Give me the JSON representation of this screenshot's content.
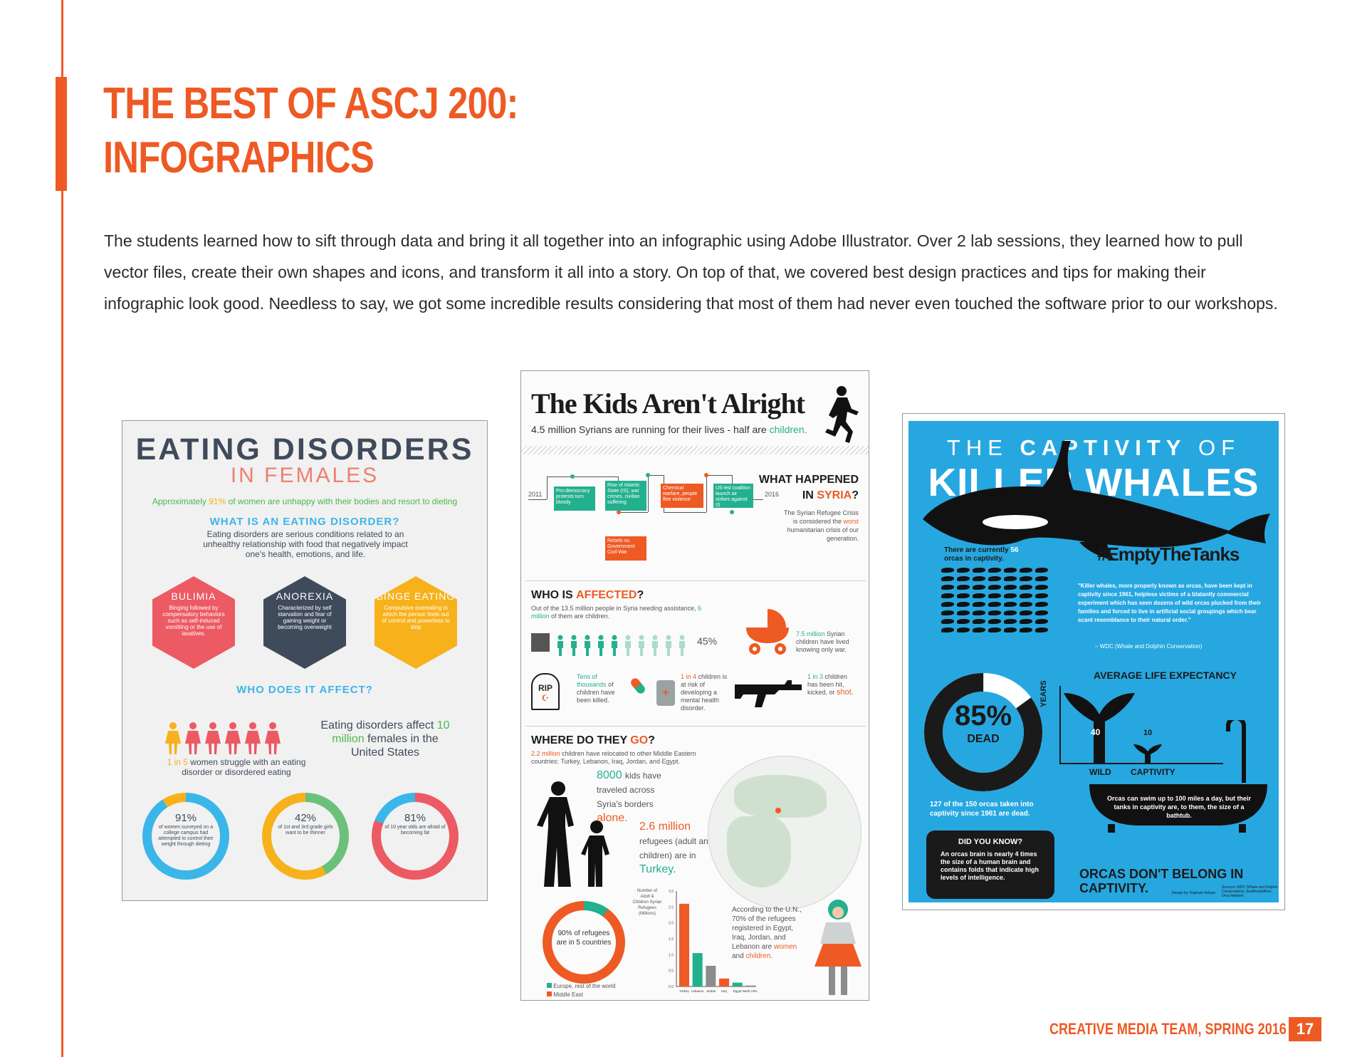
{
  "page": {
    "title_line1": "THE BEST OF ASCJ 200:",
    "title_line2": "INFOGRAPHICS",
    "intro": "The students learned how to sift through data and bring it all together into an infographic using Adobe Illustrator. Over 2 lab sessions, they learned how to pull vector files, create their own shapes and icons, and transform it all into a story. On top of that, we covered best design practices and tips for making their infographic look good. Needless to say, we got some incredible results considering that most of them had never even touched the software prior to our workshops.",
    "footer": "CREATIVE MEDIA TEAM, SPRING 2016",
    "page_number": "17",
    "accent_color": "#ee5a24"
  },
  "eating": {
    "title": "EATING DISORDERS",
    "subtitle": "IN FEMALES",
    "stat_pre": "Approximately",
    "stat_pct": "91%",
    "stat_post": "of women are unhappy with their bodies and resort to dieting",
    "question": "WHAT IS AN EATING DISORDER?",
    "definition": "Eating disorders are serious conditions related to an unhealthy relationship with food that negatively impact one's health, emotions, and life.",
    "types": [
      {
        "name": "BULIMIA",
        "desc": "Binging followed by compensatory behaviors such as self-induced vomitting or the use of laxatives.",
        "color": "#ec5a63"
      },
      {
        "name": "ANOREXIA",
        "desc": "Characterized by self starvation and fear of gaining weight or becoming overweight",
        "color": "#3f4b5b"
      },
      {
        "name": "BINGE EATING",
        "desc": "Compulsive overeating in which the person feels out of control and powerless to stop",
        "color": "#f7b11b"
      }
    ],
    "who": "WHO DOES IT AFFECT?",
    "affect_pre": "Eating disorders affect",
    "affect_num": "10 million",
    "affect_post": "females in the United States",
    "struggle_num": "1 in 5",
    "struggle_text": "women struggle with an eating disorder or disordered eating",
    "donuts": [
      {
        "pct": "91%",
        "text": "of women surveyed on a college campus had attempted to control their weight through dieting",
        "value": 91,
        "color": "#3bb6e9",
        "rest": "#f7b11b"
      },
      {
        "pct": "42%",
        "text": "of 1st and 3rd grade girls want to be thinner",
        "value": 42,
        "color": "#6cc17a",
        "rest": "#f7b11b"
      },
      {
        "pct": "81%",
        "text": "of 10 year olds are afraid of becoming fat",
        "value": 81,
        "color": "#ec5a63",
        "rest": "#3bb6e9"
      }
    ]
  },
  "syria": {
    "title": "The Kids Aren't Alright",
    "subtitle_pre": "4.5 million Syrians are running for their lives - half are",
    "subtitle_hl": "children.",
    "timeline_start": "2011",
    "timeline_end": "2016",
    "events": [
      {
        "text": "Pro-democracy protests turn bloody",
        "color": "#23b08e"
      },
      {
        "text": "Rise of Islamic State (IS), war crimes, civilian suffering",
        "color": "#23b08e"
      },
      {
        "text": "Rebels vs. Government Civil War",
        "color": "#ee5a24"
      },
      {
        "text": "Chemical warfare, people flee violence",
        "color": "#ee5a24"
      },
      {
        "text": "US-led coalition launch air strikes against IS",
        "color": "#23b08e"
      }
    ],
    "what_happened": "WHAT HAPPENED",
    "in_label": "IN",
    "syria_word": "SYRIA",
    "question_mark": "?",
    "crisis_pre": "The Syrian Refugee Crisis is considered the",
    "crisis_hl": "worst",
    "crisis_post": "humanitarian crisis of our generation.",
    "who_pre": "WHO IS",
    "who_hl": "AFFECTED",
    "affected_text": "Out of the 13.5 million people in Syria needing assistance,",
    "affected_hl": "6 million",
    "affected_post": "of them are children.",
    "pct_children": "45%",
    "stroller_hl": "7.5 million",
    "stroller_text": "Syrian children have lived knowing only war.",
    "rip": "RIP",
    "killed_hl": "Tens of thousands",
    "killed_post": "of children have been killed.",
    "health_hl": "1 in 4",
    "health_post": "children is at risk of developing a mental health disorder.",
    "shot_hl": "1 in 3",
    "shot_mid": "children has been hit, kicked, or",
    "shot_end": "shot.",
    "go_pre": "WHERE DO THEY",
    "go_hl": "GO",
    "relocated_hl": "2.2 million",
    "relocated_text": "children have relocated to other Middle Eastern countries: Turkey, Lebanon, Iraq, Jordan, and Egypt.",
    "kids_hl": "8000",
    "kids_text": "kids have traveled across Syria's borders",
    "kids_end": "alone.",
    "refugees_hl": "2.6 million",
    "refugees_text": "refugees (adult and children) are in",
    "refugees_end": "Turkey.",
    "pie_text": "90% of refugees are in 5 countries",
    "pie_legend": [
      "Europe, rest of the world",
      "Middle East"
    ],
    "un_pre": "According to the U.N., 70% of the refugees registered in Egypt, Iraq, Jordan, and Lebanon are",
    "un_women": "women",
    "un_and": "and",
    "un_children": "children."
  },
  "chart_data": {
    "type": "bar",
    "ylabel": "Number of Adult & Children Syrian Refugees (Millions)",
    "categories": [
      "Turkey",
      "Lebanon",
      "Jordan",
      "Iraq",
      "Egypt",
      "North Africa"
    ],
    "values": [
      2.6,
      1.05,
      0.65,
      0.25,
      0.12,
      0.03
    ],
    "colors": [
      "#ee5a24",
      "#23b08e",
      "#8c8c8c",
      "#ee5a24",
      "#23b08e",
      "#8c8c8c"
    ],
    "ylim": [
      0,
      3.0
    ],
    "yticks": [
      "0.0",
      "0.5",
      "1.0",
      "1.5",
      "2.0",
      "2.5",
      "3.0"
    ]
  },
  "whales": {
    "top_pre": "THE",
    "top_bold": "CAPTIVITY",
    "top_post": "OF",
    "big": "KILLER WHALES",
    "count_pre": "There are currently",
    "count_num": "56",
    "count_post": "orcas in captivity.",
    "hashtag": "#EmptyTheTanks",
    "quote": "\"Killer whales, more properly known as orcas, have been kept in captivity since 1961, helpless victims of a blatantly commercial experiment which has seen dozens of wild orcas plucked from their families and forced to live in artificial social groupings which bear scant resemblance to their natural order.\"",
    "quote_src": "– WDC (Whale and Dolphin Conservation)",
    "ale_title": "AVERAGE LIFE EXPECTANCY",
    "years_label": "YEARS",
    "wild_label": "WILD",
    "wild_value": "40",
    "captivity_label": "CAPTIVITY",
    "captivity_value": "10",
    "dead_pct": "85%",
    "dead_label": "DEAD",
    "dead_value": 85,
    "taken_text": "127 of the 150 orcas taken into captivity since 1961 are dead.",
    "dyk_title": "DID YOU KNOW?",
    "dyk_text": "An orcas brain is nearly 4 times the size of a human brain and contains folds that indicate high levels of intelligence.",
    "tub_text": "Orcas can swim up to 100 miles a day, but their tanks in captivity are, to them, the size of a bathtub.",
    "final": "ORCAS DON'T BELONG IN CAPTIVITY.",
    "credit": "Design by: Raphael Veliyan",
    "sources": "Sources: WDC (Whale and Dolphin Conservation), SeaWorldofHurt, Orca Network"
  }
}
